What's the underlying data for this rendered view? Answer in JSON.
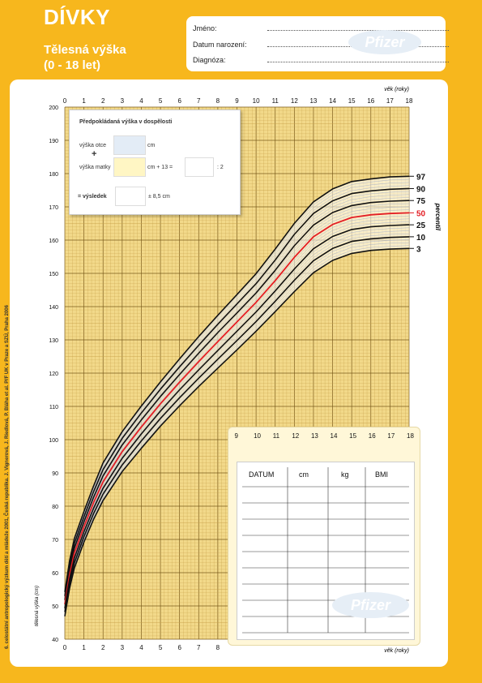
{
  "header": {
    "title": "DÍVKY",
    "subtitle": "Tělesná výška",
    "age_range": "(0 - 18 let)"
  },
  "info_form": {
    "name_label": "Jméno:",
    "birth_label": "Datum narození:",
    "diagnosis_label": "Diagnóza:"
  },
  "logo": "Pfizer",
  "side_note": "6. celostátní antropologický výzkum dětí a mládeže 2001, Česká republika. J. Vignerová, J. Riedlová, P. Bláha et al. PřF UK v Praze a SZÚ, Praha 2006",
  "adult_height": {
    "title": "Předpokládaná výška v dospělosti",
    "father_label": "výška otce",
    "father_unit": "cm",
    "plus": "+",
    "mother_label": "výška matky",
    "mother_formula": "cm + 13 =",
    "divide": ": 2",
    "result_label": "= výsledek",
    "result_range": "± 8,5 cm"
  },
  "record_table": {
    "headers": [
      "DATUM",
      "cm",
      "kg",
      "BMI"
    ],
    "row_count": 9
  },
  "chart_data": {
    "type": "line",
    "xlabel": "věk (roky)",
    "ylabel": "tělesná výška (cm)",
    "right_label": "percentil",
    "xlim": [
      0,
      18
    ],
    "ylim": [
      40,
      200
    ],
    "x_ticks_top": [
      "0",
      "1",
      "2",
      "3",
      "4",
      "5",
      "6",
      "7",
      "8",
      "9",
      "10",
      "11",
      "12",
      "13",
      "14",
      "15",
      "16",
      "17",
      "18"
    ],
    "x_ticks_bottom": [
      "0",
      "1",
      "2",
      "3",
      "4",
      "5",
      "6",
      "7",
      "8"
    ],
    "x_ticks_panel": [
      "9",
      "10",
      "11",
      "12",
      "13",
      "14",
      "15",
      "16",
      "17",
      "18"
    ],
    "y_ticks": [
      "40",
      "50",
      "60",
      "70",
      "80",
      "90",
      "100",
      "110",
      "120",
      "130",
      "140",
      "150",
      "160",
      "170",
      "180",
      "190",
      "200"
    ],
    "ages": [
      0,
      0.25,
      0.5,
      1,
      1.5,
      2,
      3,
      4,
      5,
      6,
      7,
      8,
      9,
      10,
      11,
      12,
      13,
      14,
      15,
      16,
      17,
      18
    ],
    "series": [
      {
        "name": "97",
        "values": [
          54.2,
          63.6,
          70.3,
          78.4,
          86,
          93,
          102.4,
          110.1,
          117.4,
          124.3,
          131,
          137.4,
          143.6,
          149.9,
          157.3,
          165,
          171.5,
          175.4,
          177.6,
          178.4,
          179,
          179.2
        ],
        "color": "#111111",
        "width": 1.6
      },
      {
        "name": "90",
        "values": [
          53,
          62.2,
          68.8,
          76.8,
          84.3,
          91,
          100.4,
          108,
          115.2,
          121.9,
          128.4,
          134.7,
          140.8,
          146.9,
          154,
          161.7,
          168,
          171.8,
          174,
          174.8,
          175.3,
          175.5
        ],
        "color": "#111111",
        "width": 1.6
      },
      {
        "name": "75",
        "values": [
          51.8,
          60.8,
          67.4,
          75.3,
          82.6,
          89.1,
          98.4,
          105.9,
          113,
          119.6,
          126,
          132.2,
          138.1,
          144.1,
          150.9,
          158.3,
          164.5,
          168.3,
          170.4,
          171.3,
          171.7,
          171.9
        ],
        "color": "#111111",
        "width": 1.6
      },
      {
        "name": "50",
        "values": [
          50.5,
          59.4,
          65.9,
          73.8,
          81,
          87.3,
          96.4,
          103.8,
          110.8,
          117.3,
          123.5,
          129.5,
          135.4,
          141.3,
          147.8,
          154.8,
          161,
          164.7,
          166.8,
          167.6,
          168,
          168.2
        ],
        "color": "#E31E24",
        "width": 1.8
      },
      {
        "name": "25",
        "values": [
          49.3,
          58,
          64.4,
          72.3,
          79.3,
          85.4,
          94.4,
          101.7,
          108.6,
          115,
          121,
          126.8,
          132.6,
          138.4,
          144.7,
          151.3,
          157.4,
          161.1,
          163.2,
          164,
          164.4,
          164.6
        ],
        "color": "#111111",
        "width": 1.6
      },
      {
        "name": "10",
        "values": [
          48.2,
          56.7,
          62.9,
          70.8,
          77.7,
          83.6,
          92.4,
          99.6,
          106.4,
          112.6,
          118.5,
          124.2,
          129.8,
          135.5,
          141.6,
          147.9,
          153.8,
          157.5,
          159.6,
          160.4,
          160.8,
          161
        ],
        "color": "#111111",
        "width": 1.6
      },
      {
        "name": "3",
        "values": [
          46.9,
          55.3,
          61.4,
          69.2,
          76,
          81.7,
          90.4,
          97.4,
          104.1,
          110.2,
          116,
          121.5,
          127,
          132.6,
          138.5,
          144.5,
          150.2,
          153.9,
          156,
          156.9,
          157.3,
          157.5
        ],
        "color": "#111111",
        "width": 1.6
      }
    ],
    "grid": true
  },
  "colors": {
    "background": "#F7B71D",
    "grid_fill": "#F2D98A",
    "grid_minor": "#C8A24B",
    "grid_major": "#7A5A1A",
    "band": "#FFFFFF",
    "median": "#E31E24"
  }
}
